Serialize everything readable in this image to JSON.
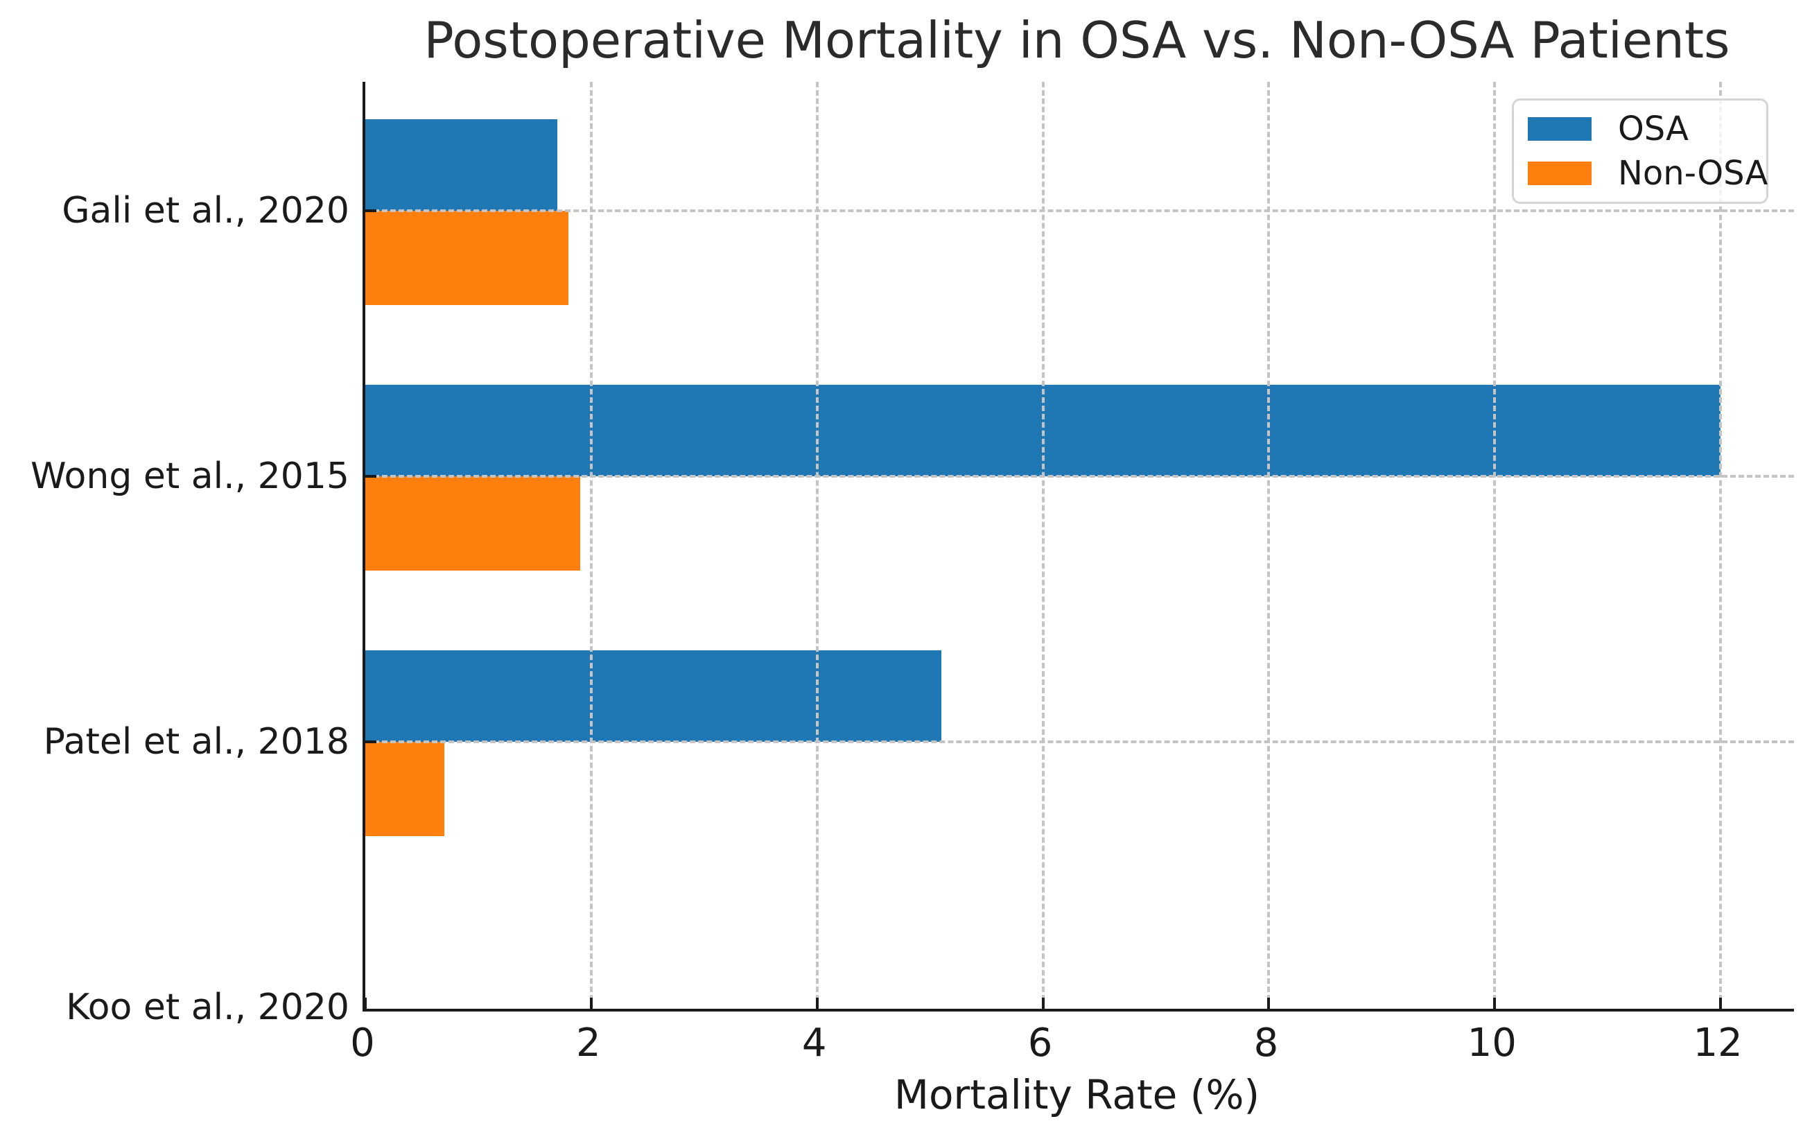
{
  "chart_data": {
    "type": "bar",
    "orientation": "horizontal",
    "title": "Postoperative Mortality in OSA vs. Non-OSA Patients",
    "xlabel": "Mortality Rate (%)",
    "ylabel": "",
    "categories": [
      "Gali et al., 2020",
      "Wong et al., 2015",
      "Patel et al., 2018",
      "Koo et al., 2020"
    ],
    "series": [
      {
        "name": "OSA",
        "color": "#1f77b4",
        "values": [
          1.7,
          12.0,
          5.1,
          0.0
        ]
      },
      {
        "name": "Non-OSA",
        "color": "#ff7f0e",
        "values": [
          1.8,
          1.9,
          0.7,
          0.0
        ]
      }
    ],
    "x_ticks": [
      0,
      2,
      4,
      6,
      8,
      10,
      12
    ],
    "xlim": [
      0,
      12.65
    ],
    "grid": true,
    "grid_style": "dashed",
    "legend_position": "upper right"
  },
  "colors": {
    "osa_bar": "#1f77b4",
    "non_osa_bar": "#ff7f0e",
    "grid": "#c4c4c4",
    "spine": "#1a1a1a",
    "text": "#1a1a1a"
  }
}
